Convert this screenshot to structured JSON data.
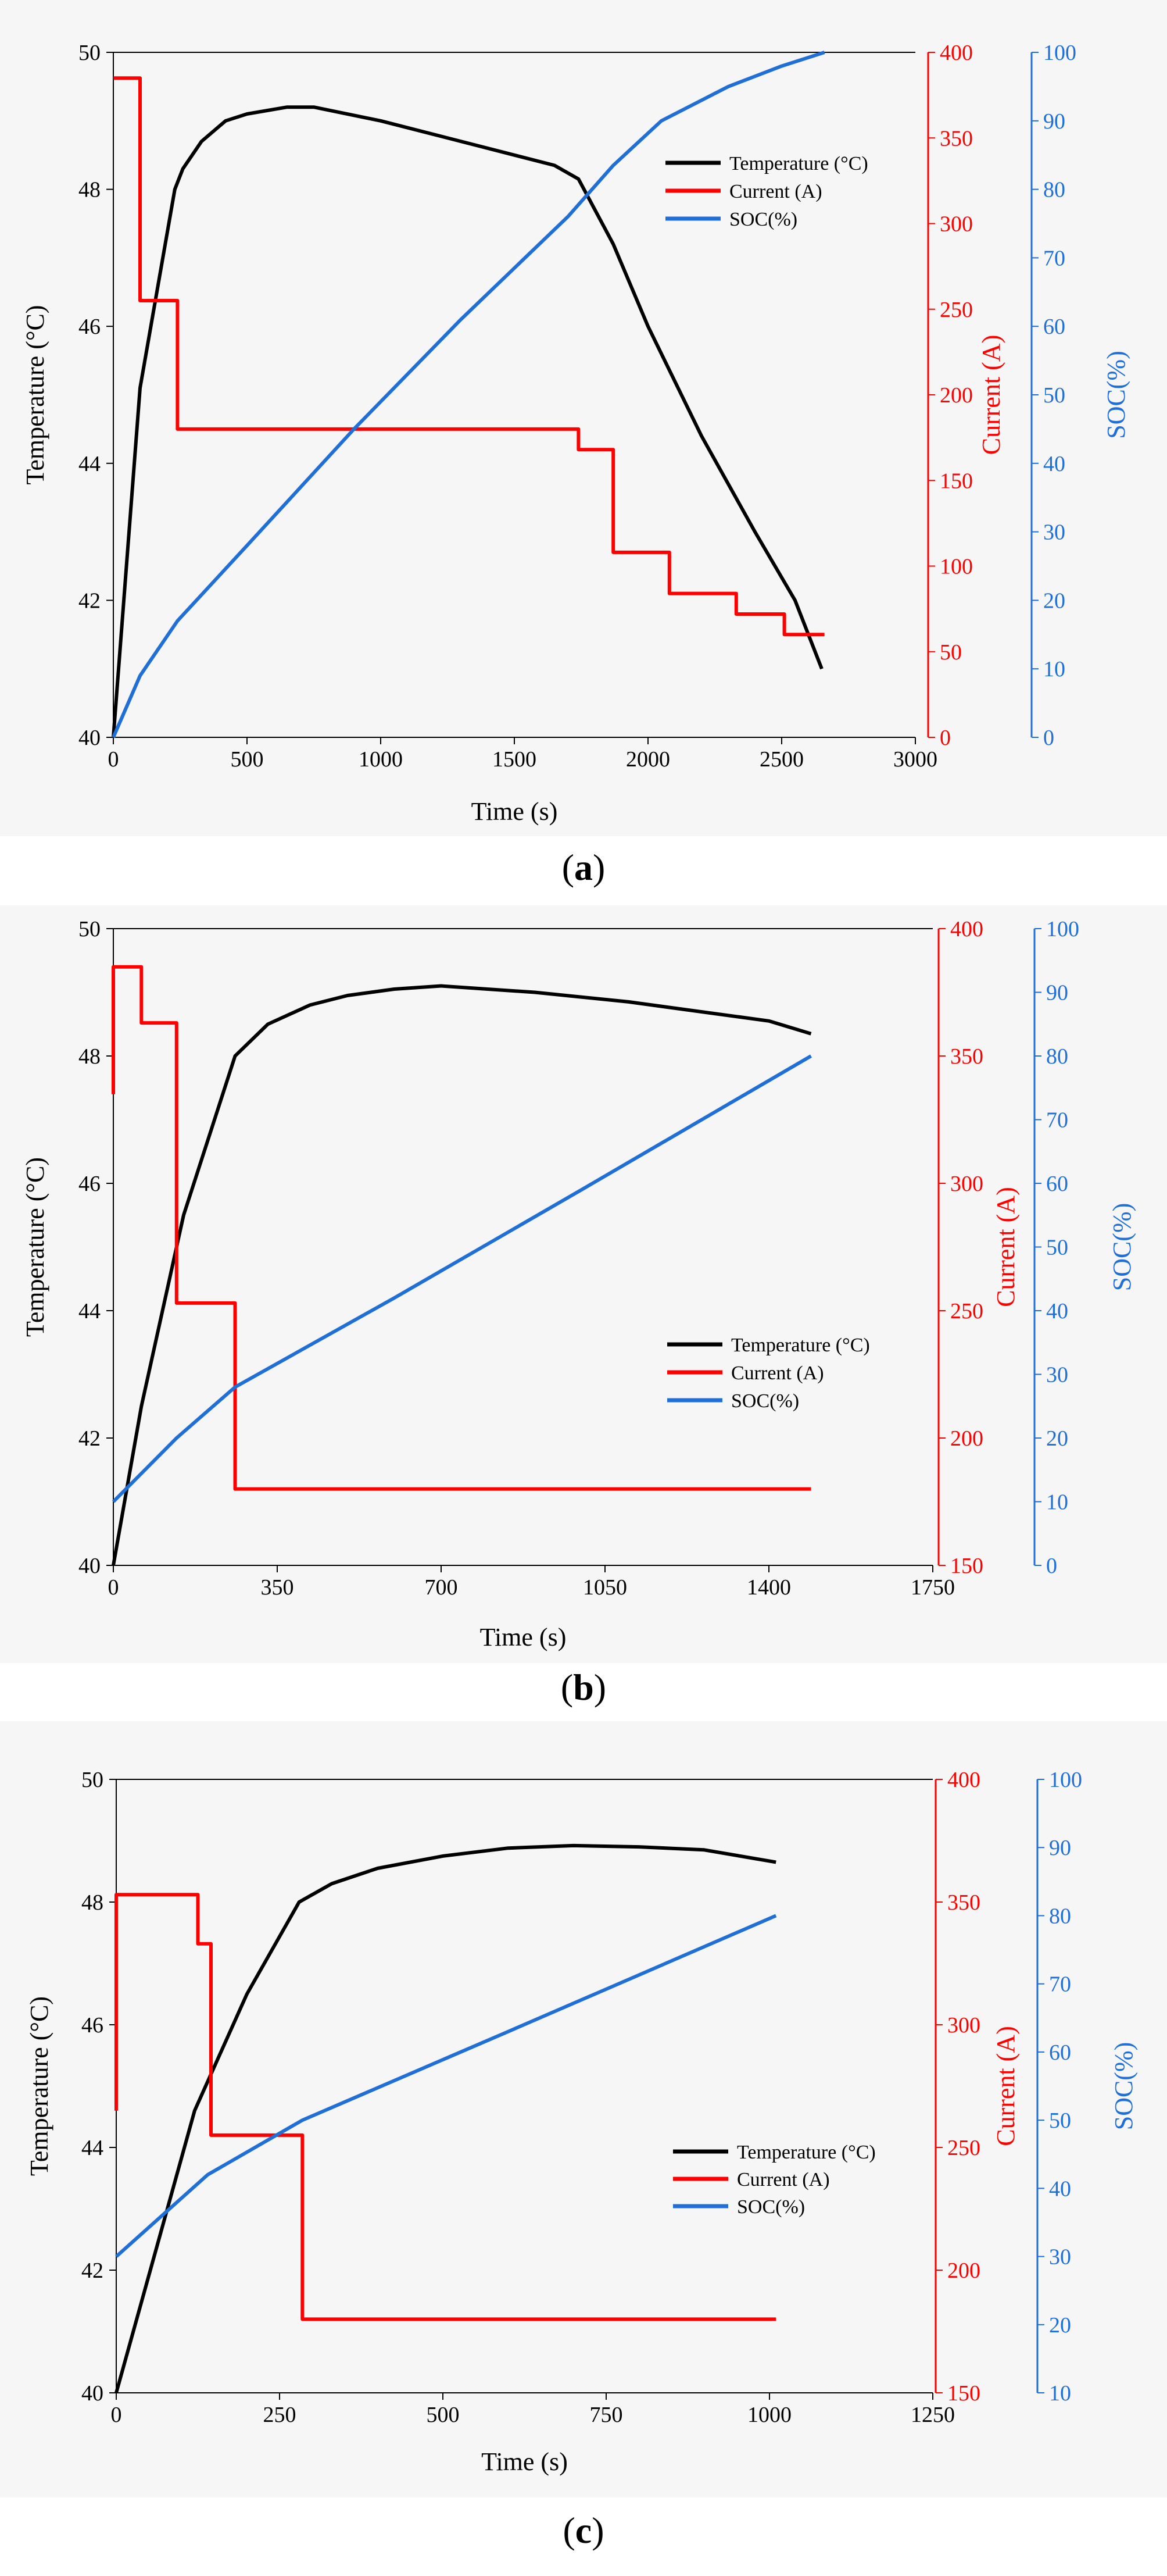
{
  "captions": [
    {
      "open": "(",
      "letter": "a",
      "close": ")"
    },
    {
      "open": "(",
      "letter": "b",
      "close": ")"
    },
    {
      "open": "(",
      "letter": "c",
      "close": ")"
    }
  ],
  "colors": {
    "temperature": "#000000",
    "current": "#ff0000",
    "soc": "#1f6fd6"
  },
  "chart_data": [
    {
      "type": "line",
      "xlabel": "Time (s)",
      "ylabel_left": "Temperature (°C)",
      "ylabel_current": "Current (A)",
      "ylabel_soc": "SOC(%)",
      "xlim": [
        0,
        3000
      ],
      "xticks": [
        0,
        500,
        1000,
        1500,
        2000,
        2500,
        3000
      ],
      "ylim_temp": [
        40,
        50
      ],
      "yticks_temp": [
        40,
        42,
        44,
        46,
        48,
        50
      ],
      "ylim_current": [
        0,
        400
      ],
      "yticks_current": [
        0,
        50,
        100,
        150,
        200,
        250,
        300,
        350,
        400
      ],
      "ylim_soc": [
        0,
        100
      ],
      "yticks_soc": [
        0,
        10,
        20,
        30,
        40,
        50,
        60,
        70,
        80,
        90,
        100
      ],
      "legend_position": "top-right",
      "series": [
        {
          "name": "Temperature (°C)",
          "axis": "temp",
          "x": [
            0,
            100,
            230,
            260,
            330,
            420,
            500,
            650,
            750,
            1000,
            1300,
            1650,
            1740,
            1870,
            2000,
            2200,
            2400,
            2550,
            2650
          ],
          "values": [
            40.0,
            45.1,
            48.0,
            48.3,
            48.7,
            49.0,
            49.1,
            49.2,
            49.2,
            49.0,
            48.7,
            48.35,
            48.15,
            47.2,
            46.0,
            44.4,
            43.0,
            42.0,
            41.0
          ]
        },
        {
          "name": "Current (A)",
          "axis": "current",
          "x": [
            0,
            0,
            100,
            100,
            240,
            240,
            1740,
            1740,
            1870,
            1870,
            2080,
            2080,
            2330,
            2330,
            2510,
            2510,
            2660
          ],
          "values": [
            385,
            385,
            385,
            255,
            255,
            180,
            180,
            168,
            168,
            108,
            108,
            84,
            84,
            72,
            72,
            60,
            60
          ]
        },
        {
          "name": "SOC(%)",
          "axis": "soc",
          "x": [
            0,
            100,
            240,
            500,
            900,
            1300,
            1700,
            1870,
            2050,
            2300,
            2500,
            2660
          ],
          "values": [
            0,
            9,
            17,
            28,
            45,
            61,
            76,
            83.5,
            90,
            95,
            98,
            100
          ]
        }
      ]
    },
    {
      "type": "line",
      "xlabel": "Time (s)",
      "ylabel_left": "Temperature (°C)",
      "ylabel_current": "Current (A)",
      "ylabel_soc": "SOC(%)",
      "xlim": [
        0,
        1750
      ],
      "xticks": [
        0,
        350,
        700,
        1050,
        1400,
        1750
      ],
      "ylim_temp": [
        40,
        50
      ],
      "yticks_temp": [
        40,
        42,
        44,
        46,
        48,
        50
      ],
      "ylim_current": [
        150,
        400
      ],
      "yticks_current": [
        150,
        200,
        250,
        300,
        350,
        400
      ],
      "ylim_soc": [
        0,
        100
      ],
      "yticks_soc": [
        0,
        10,
        20,
        30,
        40,
        50,
        60,
        70,
        80,
        90,
        100
      ],
      "legend_position": "center-right",
      "series": [
        {
          "name": "Temperature (°C)",
          "axis": "temp",
          "x": [
            0,
            60,
            150,
            260,
            330,
            420,
            500,
            600,
            700,
            900,
            1100,
            1400,
            1490
          ],
          "values": [
            40.0,
            42.5,
            45.5,
            48.0,
            48.5,
            48.8,
            48.95,
            49.05,
            49.1,
            49.0,
            48.85,
            48.55,
            48.35
          ]
        },
        {
          "name": "Current (A)",
          "axis": "current",
          "x": [
            0,
            0,
            60,
            60,
            135,
            135,
            260,
            260,
            1490
          ],
          "values": [
            335,
            385,
            385,
            363,
            363,
            253,
            253,
            180,
            180
          ]
        },
        {
          "name": "SOC(%)",
          "axis": "soc",
          "x": [
            0,
            135,
            260,
            600,
            1000,
            1490
          ],
          "values": [
            10,
            20,
            28,
            42,
            59,
            80
          ]
        }
      ]
    },
    {
      "type": "line",
      "xlabel": "Time (s)",
      "ylabel_left": "Temperature (°C)",
      "ylabel_current": "Current (A)",
      "ylabel_soc": "SOC(%)",
      "xlim": [
        0,
        1250
      ],
      "xticks": [
        0,
        250,
        500,
        750,
        1000,
        1250
      ],
      "ylim_temp": [
        40,
        50
      ],
      "yticks_temp": [
        40,
        42,
        44,
        46,
        48,
        50
      ],
      "ylim_current": [
        150,
        400
      ],
      "yticks_current": [
        150,
        200,
        250,
        300,
        350,
        400
      ],
      "ylim_soc": [
        10,
        100
      ],
      "yticks_soc": [
        10,
        20,
        30,
        40,
        50,
        60,
        70,
        80,
        90,
        100
      ],
      "legend_position": "center-right",
      "series": [
        {
          "name": "Temperature (°C)",
          "axis": "temp",
          "x": [
            0,
            120,
            200,
            280,
            330,
            400,
            500,
            600,
            700,
            800,
            900,
            1010
          ],
          "values": [
            40.0,
            44.6,
            46.5,
            48.0,
            48.3,
            48.55,
            48.75,
            48.88,
            48.92,
            48.9,
            48.85,
            48.65
          ]
        },
        {
          "name": "Current (A)",
          "axis": "current",
          "x": [
            0,
            0,
            125,
            125,
            145,
            145,
            285,
            285,
            1010
          ],
          "values": [
            265,
            353,
            353,
            333,
            333,
            255,
            255,
            180,
            180
          ]
        },
        {
          "name": "SOC(%)",
          "axis": "soc",
          "x": [
            0,
            140,
            285,
            600,
            1010
          ],
          "values": [
            30,
            42,
            50,
            63,
            80
          ]
        }
      ]
    }
  ]
}
